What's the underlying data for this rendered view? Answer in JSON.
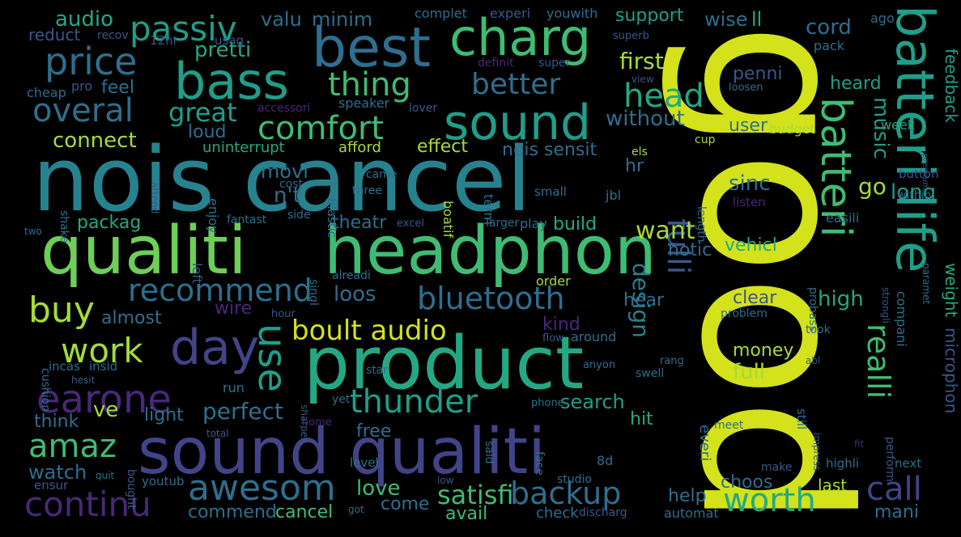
{
  "image": {
    "background": "#000000",
    "kind": "word-cloud"
  },
  "palette": {
    "yellow": "#d3e21b",
    "lime": "#a5db36",
    "green": "#6ece58",
    "mint": "#3fbc73",
    "teal": "#24a884",
    "cyan": "#1f9e89",
    "blueteal": "#26828e",
    "steel": "#2e6e8e",
    "blue": "#38588c",
    "indigo": "#414487",
    "violet": "#482878",
    "purple": "#440154"
  },
  "words": [
    {
      "text": "good",
      "color": "yellow"
    },
    {
      "text": "nois cancel",
      "color": "blueteal"
    },
    {
      "text": "qualiti",
      "color": "green"
    },
    {
      "text": "headphon",
      "color": "mint"
    },
    {
      "text": "product",
      "color": "teal"
    },
    {
      "text": "sound qualiti",
      "color": "indigo"
    },
    {
      "text": "batteri life",
      "color": "cyan"
    },
    {
      "text": "batteri",
      "color": "mint"
    },
    {
      "text": "best",
      "color": "steel"
    },
    {
      "text": "charg",
      "color": "mint"
    },
    {
      "text": "bass",
      "color": "cyan"
    },
    {
      "text": "sound",
      "color": "cyan"
    },
    {
      "text": "day",
      "color": "indigo"
    },
    {
      "text": "price",
      "color": "steel"
    },
    {
      "text": "passiv",
      "color": "cyan"
    },
    {
      "text": "thing",
      "color": "mint"
    },
    {
      "text": "better",
      "color": "steel"
    },
    {
      "text": "head",
      "color": "teal"
    },
    {
      "text": "overal",
      "color": "steel"
    },
    {
      "text": "great",
      "color": "cyan"
    },
    {
      "text": "comfort",
      "color": "mint"
    },
    {
      "text": "recommend",
      "color": "steel"
    },
    {
      "text": "buy",
      "color": "lime"
    },
    {
      "text": "work",
      "color": "lime"
    },
    {
      "text": "earone",
      "color": "violet"
    },
    {
      "text": "use",
      "color": "cyan"
    },
    {
      "text": "amaz",
      "color": "mint"
    },
    {
      "text": "awesom",
      "color": "steel"
    },
    {
      "text": "thunder",
      "color": "cyan"
    },
    {
      "text": "bluetooth",
      "color": "steel"
    },
    {
      "text": "boult audio",
      "color": "yellow"
    },
    {
      "text": "continu",
      "color": "violet"
    },
    {
      "text": "backup",
      "color": "steel"
    },
    {
      "text": "satisfi",
      "color": "mint"
    },
    {
      "text": "worth",
      "color": "teal"
    },
    {
      "text": "call",
      "color": "indigo"
    },
    {
      "text": "fulli",
      "color": "blue"
    },
    {
      "text": "realli",
      "color": "mint"
    },
    {
      "text": "design",
      "color": "blueteal"
    },
    {
      "text": "audio",
      "color": "teal"
    },
    {
      "text": "pretti",
      "color": "teal"
    },
    {
      "text": "valu",
      "color": "steel"
    },
    {
      "text": "minim",
      "color": "steel"
    },
    {
      "text": "support",
      "color": "cyan"
    },
    {
      "text": "wise",
      "color": "steel"
    },
    {
      "text": "ll",
      "color": "teal"
    },
    {
      "text": "cord",
      "color": "steel"
    },
    {
      "text": "first",
      "color": "lime"
    },
    {
      "text": "without",
      "color": "steel"
    },
    {
      "text": "penni",
      "color": "blue"
    },
    {
      "text": "heard",
      "color": "cyan"
    },
    {
      "text": "user",
      "color": "steel"
    },
    {
      "text": "music",
      "color": "cyan"
    },
    {
      "text": "connect",
      "color": "lime"
    },
    {
      "text": "effect",
      "color": "lime"
    },
    {
      "text": "nois sensit",
      "color": "steel"
    },
    {
      "text": "movi",
      "color": "steel"
    },
    {
      "text": "n't",
      "color": "steel"
    },
    {
      "text": "hr",
      "color": "steel"
    },
    {
      "text": "sinc",
      "color": "steel"
    },
    {
      "text": "go",
      "color": "lime"
    },
    {
      "text": "long",
      "color": "cyan"
    },
    {
      "text": "loud",
      "color": "steel"
    },
    {
      "text": "feel",
      "color": "steel"
    },
    {
      "text": "want",
      "color": "lime"
    },
    {
      "text": "vehicl",
      "color": "teal"
    },
    {
      "text": "notic",
      "color": "steel"
    },
    {
      "text": "packag",
      "color": "teal"
    },
    {
      "text": "theatr",
      "color": "steel"
    },
    {
      "text": "build",
      "color": "teal"
    },
    {
      "text": "loos",
      "color": "steel"
    },
    {
      "text": "high",
      "color": "teal"
    },
    {
      "text": "hear",
      "color": "steel"
    },
    {
      "text": "clear",
      "color": "blue"
    },
    {
      "text": "almost",
      "color": "steel"
    },
    {
      "text": "wire",
      "color": "violet"
    },
    {
      "text": "kind",
      "color": "violet"
    },
    {
      "text": "money",
      "color": "lime"
    },
    {
      "text": "full",
      "color": "lime"
    },
    {
      "text": "search",
      "color": "cyan"
    },
    {
      "text": "perfect",
      "color": "steel"
    },
    {
      "text": "light",
      "color": "steel"
    },
    {
      "text": "hit",
      "color": "teal"
    },
    {
      "text": "ve",
      "color": "lime"
    },
    {
      "text": "free",
      "color": "steel"
    },
    {
      "text": "watch",
      "color": "steel"
    },
    {
      "text": "think",
      "color": "steel"
    },
    {
      "text": "love",
      "color": "mint"
    },
    {
      "text": "come",
      "color": "steel"
    },
    {
      "text": "help",
      "color": "steel"
    },
    {
      "text": "choos",
      "color": "steel"
    },
    {
      "text": "commend",
      "color": "steel"
    },
    {
      "text": "cancel",
      "color": "mint"
    },
    {
      "text": "avail",
      "color": "mint"
    },
    {
      "text": "check",
      "color": "steel"
    },
    {
      "text": "mani",
      "color": "steel"
    },
    {
      "text": "last",
      "color": "lime"
    },
    {
      "text": "microphon",
      "color": "blue"
    },
    {
      "text": "weight",
      "color": "teal"
    },
    {
      "text": "feedback",
      "color": "cyan"
    },
    {
      "text": "reduct",
      "color": "blue"
    },
    {
      "text": "recov",
      "color": "blue"
    },
    {
      "text": "12hr",
      "color": "blue"
    },
    {
      "text": "usag",
      "color": "blue"
    },
    {
      "text": "complet",
      "color": "steel"
    },
    {
      "text": "experi",
      "color": "blue"
    },
    {
      "text": "youwith",
      "color": "steel"
    },
    {
      "text": "superb",
      "color": "blue"
    },
    {
      "text": "pack",
      "color": "steel"
    },
    {
      "text": "ago",
      "color": "steel"
    },
    {
      "text": "cheap",
      "color": "steel"
    },
    {
      "text": "pro",
      "color": "blue"
    },
    {
      "text": "definit",
      "color": "violet"
    },
    {
      "text": "super",
      "color": "blue"
    },
    {
      "text": "view",
      "color": "blue"
    },
    {
      "text": "loosen",
      "color": "steel"
    },
    {
      "text": "accessori",
      "color": "violet"
    },
    {
      "text": "speaker",
      "color": "steel"
    },
    {
      "text": "lover",
      "color": "blue"
    },
    {
      "text": "budget",
      "color": "lime"
    },
    {
      "text": "week",
      "color": "teal"
    },
    {
      "text": "uninterrupt",
      "color": "teal"
    },
    {
      "text": "afford",
      "color": "lime"
    },
    {
      "text": "cup",
      "color": "lime"
    },
    {
      "text": "els",
      "color": "lime"
    },
    {
      "text": "premium",
      "color": "blue"
    },
    {
      "text": "shake",
      "color": "steel"
    },
    {
      "text": "attend",
      "color": "blue"
    },
    {
      "text": "enjoy",
      "color": "steel"
    },
    {
      "text": "cost",
      "color": "steel"
    },
    {
      "text": "plastic",
      "color": "steel"
    },
    {
      "text": "came",
      "color": "steel"
    },
    {
      "text": "three",
      "color": "steel"
    },
    {
      "text": "boatif",
      "color": "lime"
    },
    {
      "text": "term",
      "color": "steel"
    },
    {
      "text": "small",
      "color": "steel"
    },
    {
      "text": "jbl",
      "color": "steel"
    },
    {
      "text": "length",
      "color": "steel"
    },
    {
      "text": "button",
      "color": "blue"
    },
    {
      "text": "within",
      "color": "steel"
    },
    {
      "text": "listen",
      "color": "violet"
    },
    {
      "text": "two",
      "color": "steel"
    },
    {
      "text": "fantast",
      "color": "steel"
    },
    {
      "text": "side",
      "color": "steel"
    },
    {
      "text": "excel",
      "color": "blue"
    },
    {
      "text": "larger",
      "color": "steel"
    },
    {
      "text": "play",
      "color": "steel"
    },
    {
      "text": "easili",
      "color": "steel"
    },
    {
      "text": "compani",
      "color": "steel"
    },
    {
      "text": "strongli",
      "color": "blue"
    },
    {
      "text": "paramet",
      "color": "steel"
    },
    {
      "text": "left",
      "color": "blue"
    },
    {
      "text": "singl",
      "color": "steel"
    },
    {
      "text": "alreadi",
      "color": "steel"
    },
    {
      "text": "order",
      "color": "lime"
    },
    {
      "text": "probass",
      "color": "steel"
    },
    {
      "text": "problem",
      "color": "steel"
    },
    {
      "text": "hour",
      "color": "blue"
    },
    {
      "text": "flow",
      "color": "blue"
    },
    {
      "text": "around",
      "color": "steel"
    },
    {
      "text": "took",
      "color": "steel"
    },
    {
      "text": "cushion",
      "color": "steel"
    },
    {
      "text": "incas",
      "color": "steel"
    },
    {
      "text": "insid",
      "color": "steel"
    },
    {
      "text": "hesit",
      "color": "blue"
    },
    {
      "text": "anyon",
      "color": "steel"
    },
    {
      "text": "rang",
      "color": "steel"
    },
    {
      "text": "abl",
      "color": "blue"
    },
    {
      "text": "sharper",
      "color": "blue"
    },
    {
      "text": "star",
      "color": "steel"
    },
    {
      "text": "swell",
      "color": "steel"
    },
    {
      "text": "run",
      "color": "steel"
    },
    {
      "text": "everi",
      "color": "steel"
    },
    {
      "text": "yet",
      "color": "steel"
    },
    {
      "text": "phone",
      "color": "steel"
    },
    {
      "text": "impress",
      "color": "blue"
    },
    {
      "text": "perform",
      "color": "blue"
    },
    {
      "text": "still",
      "color": "steel"
    },
    {
      "text": "total",
      "color": "blue"
    },
    {
      "text": "home",
      "color": "violet"
    },
    {
      "text": "said",
      "color": "steel"
    },
    {
      "text": "meet",
      "color": "steel"
    },
    {
      "text": "fit",
      "color": "violet"
    },
    {
      "text": "bought",
      "color": "blue"
    },
    {
      "text": "face",
      "color": "steel"
    },
    {
      "text": "8d",
      "color": "steel"
    },
    {
      "text": "level",
      "color": "steel"
    },
    {
      "text": "make",
      "color": "blue"
    },
    {
      "text": "highli",
      "color": "steel"
    },
    {
      "text": "next",
      "color": "steel"
    },
    {
      "text": "ensur",
      "color": "blue"
    },
    {
      "text": "quit",
      "color": "steel"
    },
    {
      "text": "youtub",
      "color": "steel"
    },
    {
      "text": "low",
      "color": "blue"
    },
    {
      "text": "studio",
      "color": "steel"
    },
    {
      "text": "got",
      "color": "steel"
    },
    {
      "text": "discharg",
      "color": "blue"
    },
    {
      "text": "automat",
      "color": "steel"
    }
  ]
}
